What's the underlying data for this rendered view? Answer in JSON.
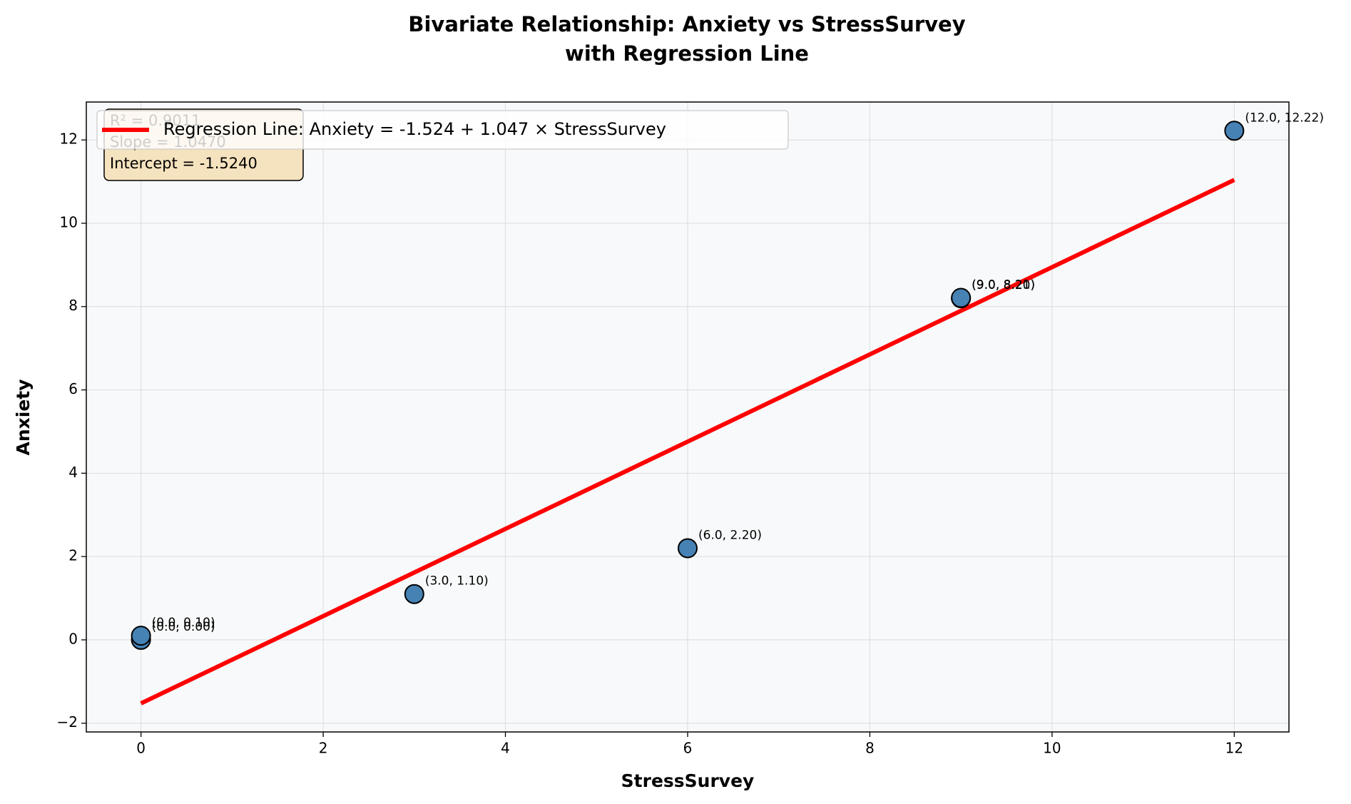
{
  "chart_data": {
    "type": "scatter",
    "title": "Bivariate Relationship: Anxiety vs StressSurvey",
    "subtitle": "with Regression Line",
    "x_label": "StressSurvey",
    "y_label": "Anxiety",
    "xlim": [
      -0.6,
      12.6
    ],
    "ylim": [
      -2.21,
      12.91
    ],
    "xticks": [
      0,
      2,
      4,
      6,
      8,
      10,
      12
    ],
    "yticks": [
      {
        "value": -2,
        "label": "−2"
      },
      0,
      2,
      4,
      6,
      8,
      10,
      12
    ],
    "grid": true,
    "legend": "upper left",
    "series": [
      {
        "type": "scatter",
        "color": "#4682b4",
        "x": [
          0,
          0,
          3,
          6,
          9,
          9,
          12
        ],
        "values": [
          0.0,
          0.1,
          1.1,
          2.2,
          8.2,
          8.21,
          12.22
        ],
        "value_labels": [
          "(0.0, 0.00)",
          "(0.0, 0.10)",
          "(3.0, 1.10)",
          "(6.0, 2.20)",
          "(9.0, 8.20)",
          "(9.0, 8.21)",
          "(12.0, 12.22)"
        ]
      },
      {
        "type": "line",
        "name": "Regression Line: Anxiety = -1.524 + 1.047 × StressSurvey",
        "color": "#ff0000",
        "x": [
          0,
          12
        ],
        "values": [
          -1.524,
          11.04
        ]
      }
    ],
    "annotations": [
      "R² = 0.9011",
      "Slope = 1.0470",
      "Intercept = -1.5240"
    ]
  }
}
